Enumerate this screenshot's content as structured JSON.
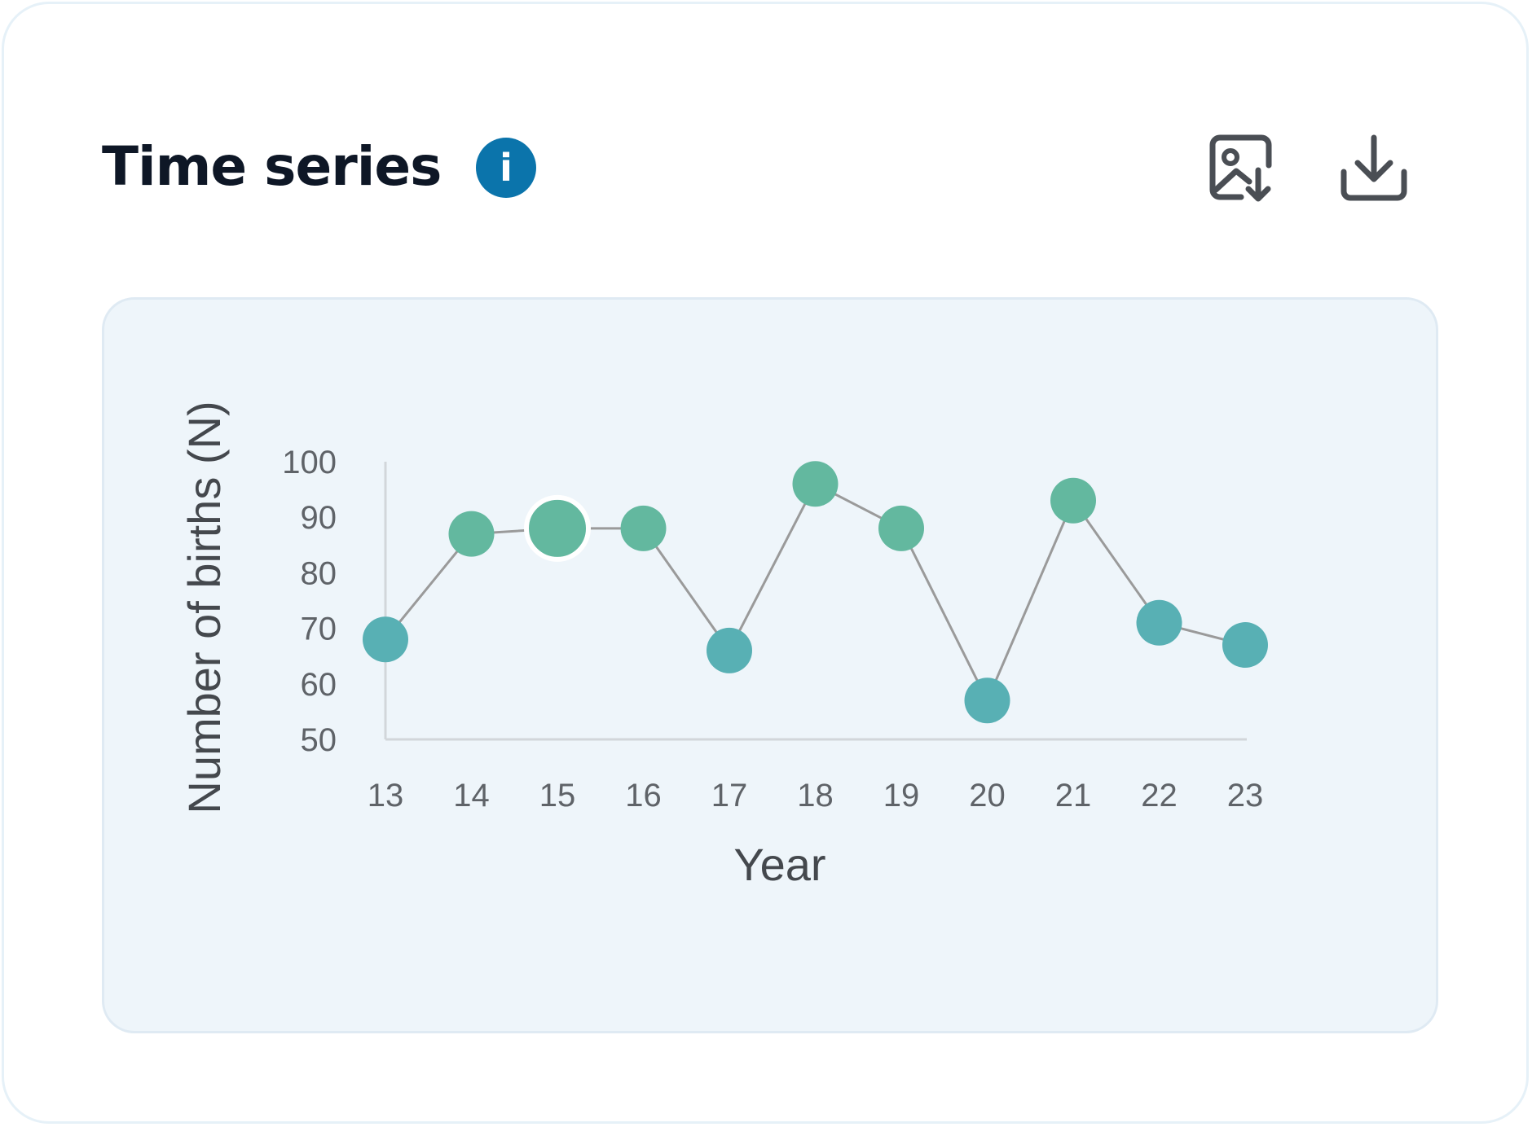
{
  "header": {
    "title": "Time series",
    "info_icon": "info-icon",
    "info_glyph": "i",
    "actions": [
      {
        "name": "download-image-button",
        "icon": "image-download-icon"
      },
      {
        "name": "download-button",
        "icon": "download-icon"
      }
    ]
  },
  "colors": {
    "accent": "#0b74ab",
    "title": "#0e1726",
    "panel": "#eef5fa",
    "line": "#9a9a9a",
    "marker_green": "#63b89f",
    "marker_teal": "#58b0b4"
  },
  "chart_data": {
    "type": "line",
    "title": "",
    "xlabel": "Year",
    "ylabel": "Number of births (N)",
    "categories": [
      "13",
      "14",
      "15",
      "16",
      "17",
      "18",
      "19",
      "20",
      "21",
      "22",
      "23"
    ],
    "series": [
      {
        "values": [
          68,
          87,
          88,
          88,
          66,
          96,
          88,
          57,
          93,
          71,
          67
        ]
      }
    ],
    "y_ticks": [
      50,
      60,
      70,
      80,
      90,
      100
    ],
    "ylim": [
      50,
      100
    ],
    "highlighted_category": "15",
    "grid": false,
    "legend": "none"
  }
}
